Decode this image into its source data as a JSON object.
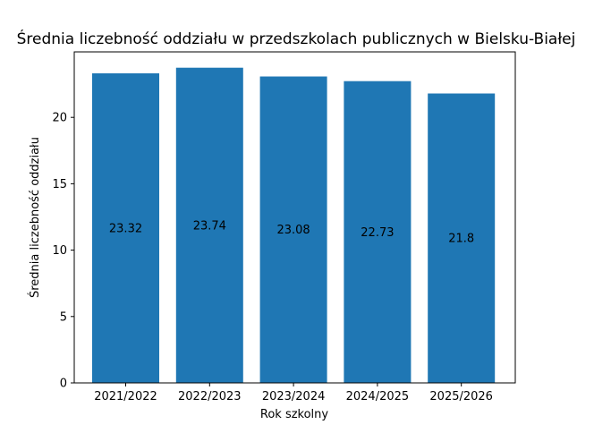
{
  "colors": {
    "bar": "#1f77b4",
    "axis": "#000000",
    "background": "#ffffff"
  },
  "chart_data": {
    "type": "bar",
    "title": "Średnia liczebność oddziału w przedszkolach publicznych w Bielsku-Białej",
    "xlabel": "Rok szkolny",
    "ylabel": "Średnia liczebność oddziału",
    "categories": [
      "2021/2022",
      "2022/2023",
      "2023/2024",
      "2024/2025",
      "2025/2026"
    ],
    "values": [
      23.32,
      23.74,
      23.08,
      22.73,
      21.8
    ],
    "data_labels": [
      "23.32",
      "23.74",
      "23.08",
      "22.73",
      "21.8"
    ],
    "ylim": [
      0,
      24.93
    ],
    "yticks": [
      0,
      5,
      10,
      15,
      20
    ],
    "grid": false,
    "legend": false
  }
}
